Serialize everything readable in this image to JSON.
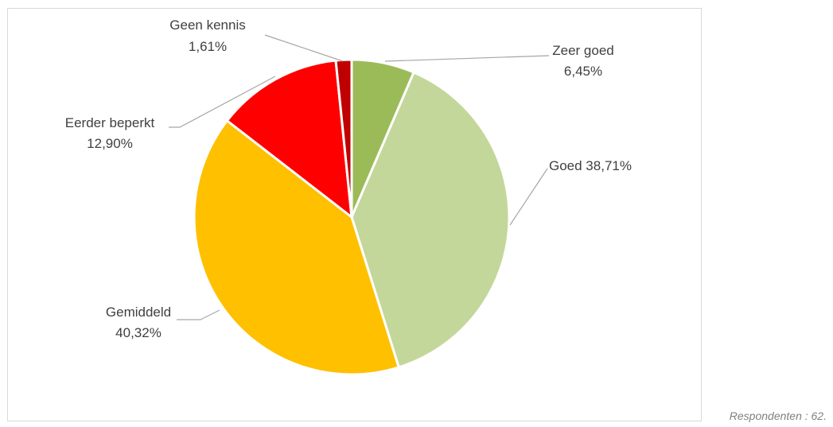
{
  "chart_data": {
    "type": "pie",
    "title": "",
    "categories": [
      "Zeer goed",
      "Goed",
      "Gemiddeld",
      "Eerder beperkt",
      "Geen kennis"
    ],
    "values": [
      6.45,
      38.71,
      40.32,
      12.9,
      1.61
    ],
    "value_labels": [
      "6,45%",
      "38,71%",
      "40,32%",
      "12,90%",
      "1,61%"
    ],
    "colors": [
      "#9bbb59",
      "#c4d79b",
      "#ffc000",
      "#ff0000",
      "#c00000"
    ],
    "start_angle": "12 o'clock, clockwise",
    "legend": "none",
    "data_labels": "outside with leader lines"
  },
  "footnote": "Respondenten : 62."
}
